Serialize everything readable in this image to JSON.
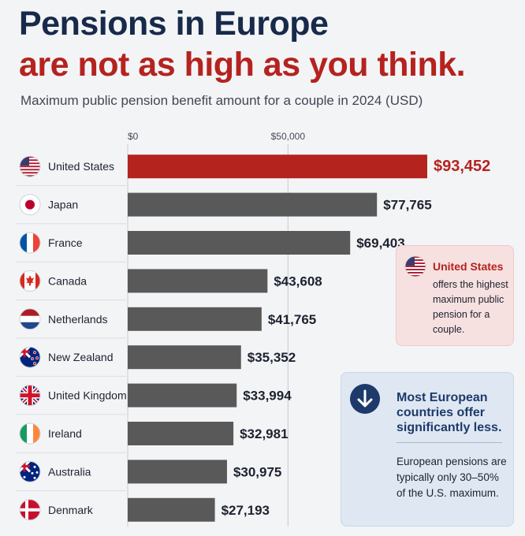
{
  "header": {
    "title_line1": "Pensions in Europe",
    "title_line2": "are not as high as you think.",
    "subtitle": "Maximum public pension benefit amount for a couple in 2024 (USD)"
  },
  "chart_data": {
    "type": "bar",
    "orientation": "horizontal",
    "x_ticks": [
      "$0",
      "$50,000"
    ],
    "tick_values": [
      0,
      50000
    ],
    "categories": [
      "United States",
      "Japan",
      "France",
      "Canada",
      "Netherlands",
      "New Zealand",
      "United Kingdom",
      "Ireland",
      "Australia",
      "Denmark"
    ],
    "values": [
      93452,
      77765,
      69403,
      43608,
      41765,
      35352,
      33994,
      32981,
      30975,
      27193
    ],
    "value_labels": [
      "$93,452",
      "$77,765",
      "$69,403",
      "$43,608",
      "$41,765",
      "$35,352",
      "$33,994",
      "$32,981",
      "$30,975",
      "$27,193"
    ],
    "flags": [
      "us-flag-icon",
      "japan-flag-icon",
      "france-flag-icon",
      "canada-flag-icon",
      "netherlands-flag-icon",
      "new-zealand-flag-icon",
      "uk-flag-icon",
      "ireland-flag-icon",
      "australia-flag-icon",
      "denmark-flag-icon"
    ],
    "highlight_color": "#b5231f",
    "bar_color": "#595959",
    "grid": true
  },
  "callout_us": {
    "heading": "United States",
    "body": "offers the highest maximum public pension for a couple."
  },
  "callout_eu": {
    "heading": "Most European countries offer significantly less.",
    "body": "European pensions are typically only 30–50% of the U.S. maximum.",
    "icon": "arrow-down-icon"
  }
}
